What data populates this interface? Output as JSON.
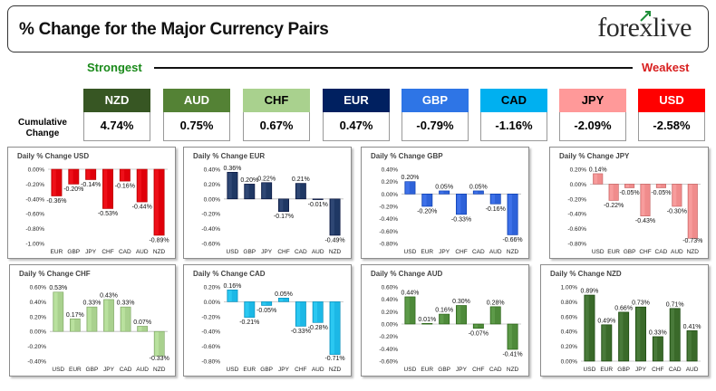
{
  "header": {
    "title": "% Change for the Major Currency Pairs",
    "logo": "forexlive",
    "strongest_label": "Strongest",
    "weakest_label": "Weakest",
    "cumulative_label_line1": "Cumulative",
    "cumulative_label_line2": "Change"
  },
  "currencies": [
    {
      "code": "NZD",
      "value": "4.74%",
      "color": "#375623",
      "text_color": "#ffffff"
    },
    {
      "code": "AUD",
      "value": "0.75%",
      "color": "#548235",
      "text_color": "#ffffff"
    },
    {
      "code": "CHF",
      "value": "0.67%",
      "color": "#a9d18e",
      "text_color": "#000000"
    },
    {
      "code": "EUR",
      "value": "0.47%",
      "color": "#002060",
      "text_color": "#ffffff"
    },
    {
      "code": "GBP",
      "value": "-0.79%",
      "color": "#2e75e6",
      "text_color": "#ffffff"
    },
    {
      "code": "CAD",
      "value": "-1.16%",
      "color": "#00b0f0",
      "text_color": "#000000"
    },
    {
      "code": "JPY",
      "value": "-2.09%",
      "color": "#ff9999",
      "text_color": "#000000"
    },
    {
      "code": "USD",
      "value": "-2.58%",
      "color": "#ff0000",
      "text_color": "#ffffff"
    }
  ],
  "chart_data": [
    {
      "type": "bar",
      "title": "Daily % Change USD",
      "color": "#e0000a",
      "categories": [
        "EUR",
        "GBP",
        "JPY",
        "CHF",
        "CAD",
        "AUD",
        "NZD"
      ],
      "values": [
        -0.36,
        -0.2,
        -0.14,
        -0.53,
        -0.16,
        -0.44,
        -0.89
      ],
      "labels": [
        "-0.36%",
        "-0.20%",
        "-0.14%",
        "-0.53%",
        "-0.16%",
        "-0.44%",
        "-0.89%"
      ],
      "yticks": [
        "0.00%",
        "-0.20%",
        "-0.40%",
        "-0.60%",
        "-0.80%",
        "-1.00%"
      ],
      "ylim": [
        -1.0,
        0.0
      ],
      "grid": false
    },
    {
      "type": "bar",
      "title": "Daily % Change EUR",
      "color": "#1f3864",
      "categories": [
        "USD",
        "GBP",
        "JPY",
        "CHF",
        "CAD",
        "AUD",
        "NZD"
      ],
      "values": [
        0.36,
        0.2,
        0.22,
        -0.17,
        0.21,
        -0.01,
        -0.49
      ],
      "labels": [
        "0.36%",
        "0.20%",
        "0.22%",
        "-0.17%",
        "0.21%",
        "-0.01%",
        "-0.49%"
      ],
      "yticks": [
        "0.40%",
        "0.20%",
        "0.00%",
        "-0.20%",
        "-0.40%",
        "-0.60%"
      ],
      "ylim": [
        -0.6,
        0.4
      ],
      "grid": false
    },
    {
      "type": "bar",
      "title": "Daily % Change GBP",
      "color": "#2e62d9",
      "categories": [
        "USD",
        "EUR",
        "JPY",
        "CHF",
        "CAD",
        "AUD",
        "NZD"
      ],
      "values": [
        0.2,
        -0.2,
        0.05,
        -0.33,
        0.05,
        -0.16,
        -0.66
      ],
      "labels": [
        "0.20%",
        "-0.20%",
        "0.05%",
        "-0.33%",
        "0.05%",
        "-0.16%",
        "-0.66%"
      ],
      "yticks": [
        "0.40%",
        "0.20%",
        "0.00%",
        "-0.20%",
        "-0.40%",
        "-0.60%",
        "-0.80%"
      ],
      "ylim": [
        -0.8,
        0.4
      ],
      "grid": false
    },
    {
      "type": "bar",
      "title": "Daily % Change JPY",
      "color": "#f08c8c",
      "categories": [
        "USD",
        "EUR",
        "GBP",
        "CHF",
        "CAD",
        "AUD",
        "NZD"
      ],
      "values": [
        0.14,
        -0.22,
        -0.05,
        -0.43,
        -0.05,
        -0.3,
        -0.73
      ],
      "labels": [
        "0.14%",
        "-0.22%",
        "-0.05%",
        "-0.43%",
        "-0.05%",
        "-0.30%",
        "-0.73%"
      ],
      "yticks": [
        "0.20%",
        "0.00%",
        "-0.20%",
        "-0.40%",
        "-0.60%",
        "-0.80%"
      ],
      "ylim": [
        -0.8,
        0.2
      ],
      "grid": false
    },
    {
      "type": "bar",
      "title": "Daily % Change CHF",
      "color": "#a9d18e",
      "categories": [
        "USD",
        "EUR",
        "GBP",
        "JPY",
        "CAD",
        "AUD",
        "NZD"
      ],
      "values": [
        0.53,
        0.17,
        0.33,
        0.43,
        0.33,
        0.07,
        -0.33
      ],
      "labels": [
        "0.53%",
        "0.17%",
        "0.33%",
        "0.43%",
        "0.33%",
        "0.07%",
        "-0.33%"
      ],
      "yticks": [
        "0.60%",
        "0.40%",
        "0.20%",
        "0.00%",
        "-0.20%",
        "-0.40%"
      ],
      "ylim": [
        -0.4,
        0.6
      ],
      "grid": false
    },
    {
      "type": "bar",
      "title": "Daily % Change CAD",
      "color": "#1cb8e6",
      "categories": [
        "USD",
        "EUR",
        "GBP",
        "JPY",
        "CHF",
        "AUD",
        "NZD"
      ],
      "values": [
        0.16,
        -0.21,
        -0.05,
        0.05,
        -0.33,
        -0.28,
        -0.71
      ],
      "labels": [
        "0.16%",
        "-0.21%",
        "-0.05%",
        "0.05%",
        "-0.33%",
        "-0.28%",
        "-0.71%"
      ],
      "yticks": [
        "0.20%",
        "0.00%",
        "-0.20%",
        "-0.40%",
        "-0.60%",
        "-0.80%"
      ],
      "ylim": [
        -0.8,
        0.2
      ],
      "grid": false
    },
    {
      "type": "bar",
      "title": "Daily % Change AUD",
      "color": "#4e8a3a",
      "categories": [
        "USD",
        "EUR",
        "GBP",
        "JPY",
        "CHF",
        "CAD",
        "NZD"
      ],
      "values": [
        0.44,
        0.01,
        0.16,
        0.3,
        -0.07,
        0.28,
        -0.41
      ],
      "labels": [
        "0.44%",
        "0.01%",
        "0.16%",
        "0.30%",
        "-0.07%",
        "0.28%",
        "-0.41%"
      ],
      "yticks": [
        "0.60%",
        "0.40%",
        "0.20%",
        "0.00%",
        "-0.20%",
        "-0.40%",
        "-0.60%"
      ],
      "ylim": [
        -0.6,
        0.6
      ],
      "grid": false
    },
    {
      "type": "bar",
      "title": "Daily % Change NZD",
      "color": "#3a6a2a",
      "categories": [
        "USD",
        "EUR",
        "GBP",
        "JPY",
        "CHF",
        "CAD",
        "AUD"
      ],
      "values": [
        0.89,
        0.49,
        0.66,
        0.73,
        0.33,
        0.71,
        0.41
      ],
      "labels": [
        "0.89%",
        "0.49%",
        "0.66%",
        "0.73%",
        "0.33%",
        "0.71%",
        "0.41%"
      ],
      "yticks": [
        "1.00%",
        "0.80%",
        "0.60%",
        "0.40%",
        "0.20%",
        "0.00%"
      ],
      "ylim": [
        0.0,
        1.0
      ],
      "grid": false
    }
  ]
}
